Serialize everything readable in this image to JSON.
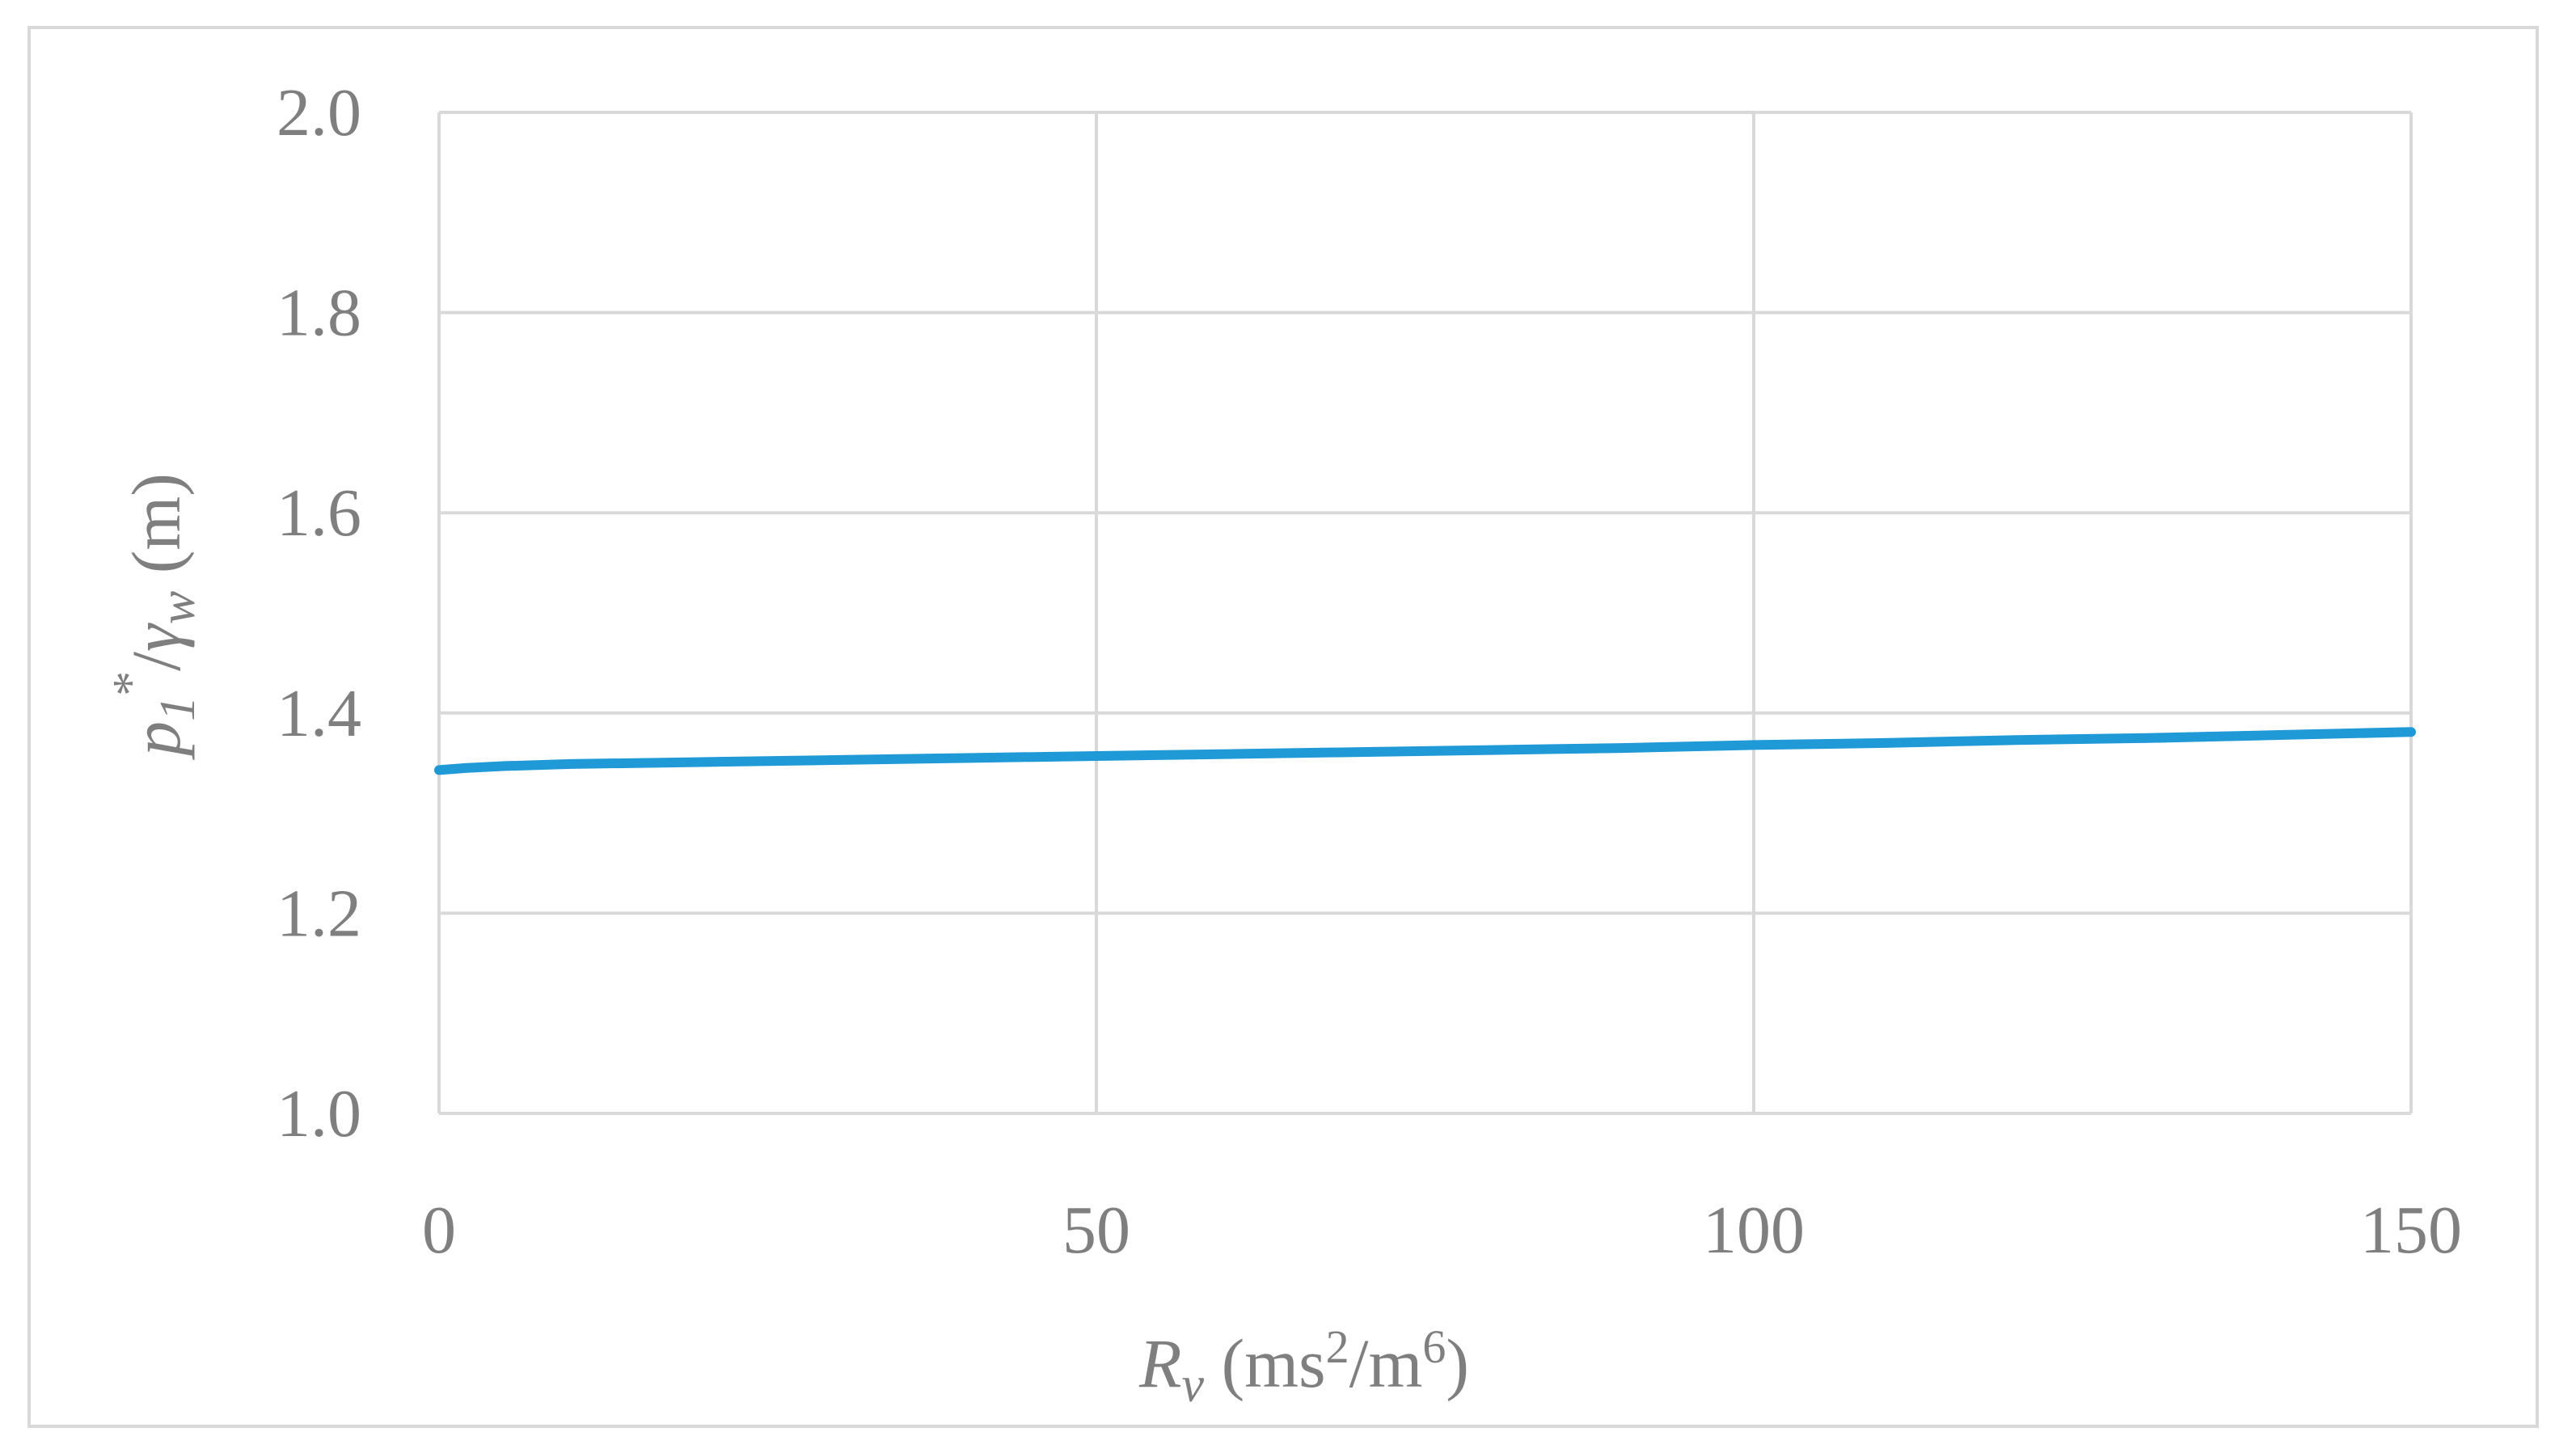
{
  "chart_data": {
    "type": "line",
    "title": "",
    "xlabel": {
      "symbol": "R",
      "subscript": "v",
      "unit_open": " (ms",
      "unit_exp1": "2",
      "unit_mid": "/m",
      "unit_exp2": "6",
      "unit_close": ")"
    },
    "ylabel": {
      "symbol": "p",
      "subscript": "1",
      "superscript": "*",
      "slash": "/",
      "symbol2": "γ",
      "subscript2": "w",
      "unit": " (m)"
    },
    "xlim": [
      0,
      150
    ],
    "ylim": [
      1.0,
      2.0
    ],
    "x_ticks": [
      0,
      50,
      100,
      150
    ],
    "x_tick_labels": [
      "0",
      "50",
      "100",
      "150"
    ],
    "y_ticks": [
      1.0,
      1.2,
      1.4,
      1.6,
      1.8,
      2.0
    ],
    "y_tick_labels": [
      "1.0",
      "1.2",
      "1.4",
      "1.6",
      "1.8",
      "2.0"
    ],
    "grid": true,
    "legend": "none",
    "series": [
      {
        "color": "#1f9ad7",
        "x": [
          0,
          2,
          5,
          10,
          20,
          30,
          40,
          50,
          60,
          70,
          80,
          90,
          100,
          110,
          120,
          130,
          140,
          150
        ],
        "y": [
          1.343,
          1.345,
          1.347,
          1.349,
          1.351,
          1.353,
          1.355,
          1.357,
          1.359,
          1.361,
          1.363,
          1.365,
          1.368,
          1.37,
          1.373,
          1.375,
          1.378,
          1.381
        ]
      }
    ]
  }
}
